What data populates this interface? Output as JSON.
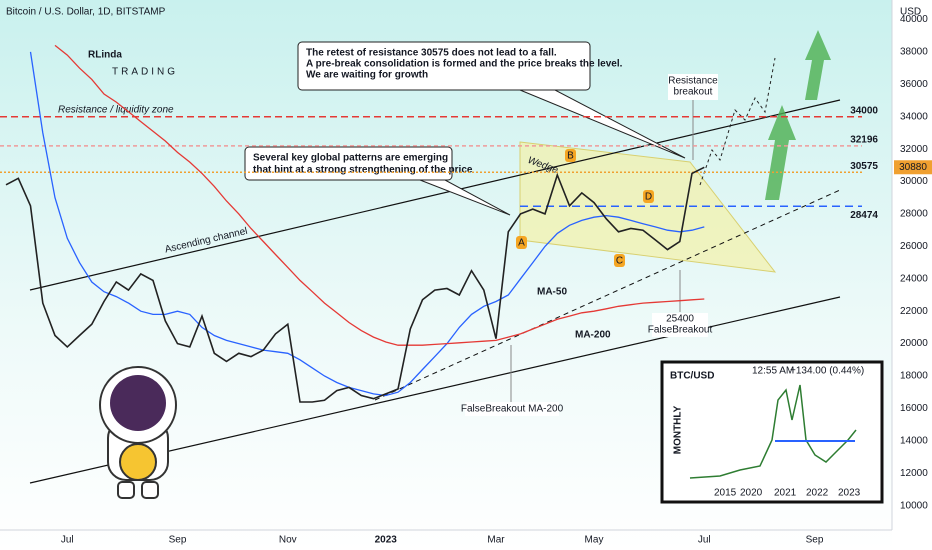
{
  "chart_data": {
    "type": "line",
    "title": "Bitcoin / U.S. Dollar, 1D, BITSTAMP",
    "y_axis_label": "USD",
    "categories": [
      null,
      null,
      null,
      null,
      null,
      "Jul",
      null,
      null,
      null,
      null,
      null,
      null,
      null,
      null,
      "Sep",
      null,
      null,
      null,
      null,
      null,
      null,
      null,
      null,
      "Nov",
      null,
      null,
      null,
      null,
      null,
      null,
      null,
      "2023",
      null,
      null,
      null,
      null,
      null,
      null,
      null,
      null,
      "Mar",
      null,
      null,
      null,
      null,
      null,
      null,
      null,
      "May",
      null,
      null,
      null,
      null,
      null,
      null,
      null,
      null,
      "Jul",
      null,
      null,
      null,
      null,
      null,
      null,
      null,
      null,
      "Sep",
      null
    ],
    "values": [
      29800,
      30200,
      28500,
      22500,
      20500,
      19800,
      20500,
      21200,
      22600,
      23800,
      23300,
      24300,
      23900,
      21400,
      20000,
      19800,
      21700,
      19400,
      18900,
      19400,
      19200,
      19600,
      20600,
      21200,
      16400,
      16400,
      16500,
      17100,
      17300,
      16800,
      16600,
      16900,
      17200,
      20900,
      22700,
      23300,
      23400,
      23000,
      24500,
      23300,
      20300,
      26900,
      28000,
      28300,
      28000,
      30400,
      28500,
      29300,
      28700,
      27700,
      26900,
      27100,
      27000,
      26400,
      25800,
      26300,
      30500,
      30880,
      null,
      null,
      null,
      null,
      null,
      null,
      null,
      null,
      null,
      null
    ],
    "color": "#222222",
    "overlays": [
      {
        "name": "MA-50",
        "color": "#2962ff",
        "values": [
          null,
          null,
          38000,
          33000,
          29000,
          26500,
          25000,
          23800,
          23200,
          22900,
          22500,
          22000,
          21800,
          21800,
          22000,
          21800,
          21000,
          20500,
          20200,
          20000,
          19800,
          19600,
          19500,
          19400,
          19000,
          18500,
          18000,
          17600,
          17300,
          17100,
          16900,
          16800,
          17000,
          17600,
          18400,
          19200,
          20000,
          21000,
          21800,
          22300,
          22600,
          23000,
          24000,
          25000,
          26000,
          26800,
          27300,
          27600,
          27800,
          27900,
          27800,
          27600,
          27400,
          27200,
          27000,
          26900,
          27000,
          27200,
          null,
          null,
          null,
          null,
          null,
          null,
          null,
          null,
          null,
          null
        ]
      },
      {
        "name": "MA-200",
        "color": "#e53935",
        "values": [
          null,
          null,
          null,
          null,
          38400,
          37800,
          37000,
          36300,
          35400,
          34900,
          34300,
          33700,
          33100,
          32500,
          31800,
          31200,
          30500,
          29700,
          28800,
          28000,
          27100,
          26300,
          25500,
          24700,
          23900,
          23200,
          22500,
          21900,
          21300,
          20800,
          20400,
          20100,
          19900,
          19900,
          19900,
          19950,
          20000,
          20050,
          20100,
          20150,
          20200,
          20400,
          20600,
          20900,
          21200,
          21500,
          21700,
          21900,
          22000,
          22150,
          22300,
          22400,
          22500,
          22550,
          22600,
          22650,
          22700,
          22750,
          null,
          null,
          null,
          null,
          null,
          null,
          null,
          null,
          null,
          null
        ]
      }
    ],
    "levels": [
      {
        "value": 34000,
        "color": "#e53935"
      },
      {
        "value": 32196,
        "color": "#ef9a9a"
      },
      {
        "value": 30575,
        "color": "#f0a030"
      },
      {
        "value": 28474,
        "color": "#2962ff"
      }
    ],
    "ylim": [
      8500,
      41200
    ],
    "yticks": [
      10000,
      12000,
      14000,
      16000,
      18000,
      20000,
      22000,
      24000,
      26000,
      28000,
      30000,
      32000,
      34000,
      36000,
      38000,
      40000
    ],
    "grid": false,
    "annotations": {
      "retest": [
        "The retest of resistance 30575 does not lead to a fall.",
        "A pre-break consolidation is formed and the price breaks the level.",
        "We are waiting for growth"
      ],
      "patterns": [
        "Several key global patterns are emerging",
        "that hint at a strong strengthening of the price"
      ],
      "zone": "Resistance / liquidity zone",
      "channel": "Ascending channel",
      "wedge": "Wedge",
      "breakout": [
        "Resistance",
        "breakout"
      ],
      "false_breakout": [
        "25400",
        "FalseBreakout"
      ],
      "false_ma": "FalseBreakout MA-200",
      "points": [
        "A",
        "B",
        "C",
        "D"
      ]
    }
  },
  "logo": [
    "RLinda",
    "TRADING"
  ],
  "inset": {
    "title": "BTC/USD",
    "time": "12:55 AM",
    "change": "+134.00 (0.44%)",
    "period": "MONTHLY",
    "years": [
      "2015",
      "2020",
      "2021",
      "2022",
      "2023"
    ]
  }
}
